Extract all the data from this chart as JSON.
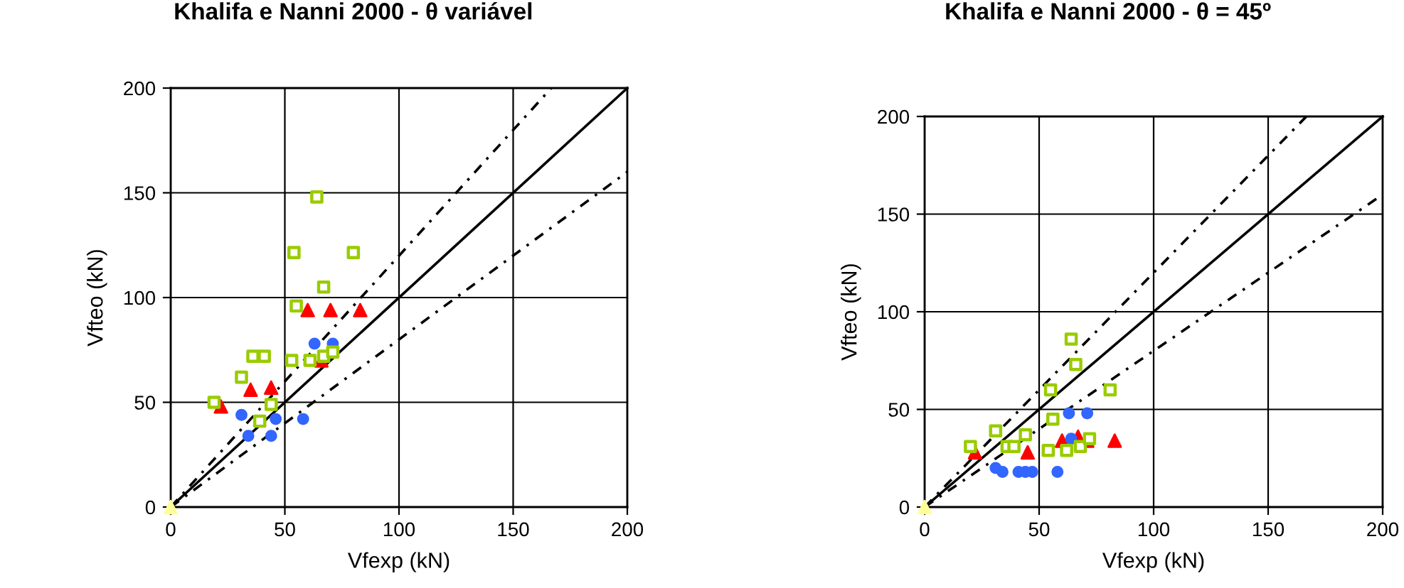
{
  "chart_data": [
    {
      "type": "scatter",
      "title": "Khalifa e Nanni 2000 - θ variável",
      "xlabel": "Vfexp (kN)",
      "ylabel": "Vfteo (kN)",
      "xlim": [
        0,
        200
      ],
      "ylim": [
        0,
        200
      ],
      "xticks": [
        0,
        50,
        100,
        150,
        200
      ],
      "yticks": [
        0,
        50,
        100,
        150,
        200
      ],
      "grid": true,
      "legend": false,
      "series": [
        {
          "type": "line",
          "color": "#000000",
          "line_style": "solid",
          "marker": "none",
          "x": [
            0,
            200
          ],
          "values": [
            0,
            200
          ]
        },
        {
          "type": "line",
          "color": "#000000",
          "line_style": "dashed",
          "marker": "none",
          "x": [
            0,
            166.7
          ],
          "values": [
            0,
            200
          ]
        },
        {
          "type": "line",
          "color": "#000000",
          "line_style": "dashed",
          "marker": "none",
          "x": [
            0,
            200
          ],
          "values": [
            0,
            160
          ]
        },
        {
          "color": "#99cc00",
          "marker": "square",
          "x": [
            64,
            54,
            80,
            67,
            55,
            36,
            41,
            31,
            53,
            61,
            67,
            71,
            19,
            44,
            39
          ],
          "values": [
            148,
            121.5,
            121.5,
            105,
            96,
            72,
            72,
            62,
            70,
            70,
            72,
            74,
            50,
            49,
            41
          ]
        },
        {
          "color": "#ff0000",
          "marker": "triangle",
          "x": [
            60,
            70,
            83,
            35,
            44,
            22,
            66
          ],
          "values": [
            94,
            94,
            94,
            56,
            57,
            48,
            70
          ]
        },
        {
          "color": "#3366ff",
          "marker": "circle",
          "x": [
            63,
            71,
            31,
            46,
            58,
            34,
            44
          ],
          "values": [
            78,
            78,
            44,
            42,
            42,
            34,
            34
          ]
        },
        {
          "color": "#ffff99",
          "marker": "triangle",
          "x": [
            0
          ],
          "values": [
            0
          ]
        }
      ]
    },
    {
      "type": "scatter",
      "title": "Khalifa e Nanni 2000 - θ = 45º",
      "xlabel": "Vfexp (kN)",
      "ylabel": "Vfteo (kN)",
      "xlim": [
        0,
        200
      ],
      "ylim": [
        0,
        200
      ],
      "xticks": [
        0,
        50,
        100,
        150,
        200
      ],
      "yticks": [
        0,
        50,
        100,
        150,
        200
      ],
      "grid": true,
      "legend": false,
      "series": [
        {
          "type": "line",
          "color": "#000000",
          "line_style": "solid",
          "marker": "none",
          "x": [
            0,
            200
          ],
          "values": [
            0,
            200
          ]
        },
        {
          "type": "line",
          "color": "#000000",
          "line_style": "dashed",
          "marker": "none",
          "x": [
            0,
            166.7
          ],
          "values": [
            0,
            200
          ]
        },
        {
          "type": "line",
          "color": "#000000",
          "line_style": "dashed",
          "marker": "none",
          "x": [
            0,
            200
          ],
          "values": [
            0,
            160
          ]
        },
        {
          "color": "#99cc00",
          "marker": "square",
          "x": [
            64,
            66,
            55,
            81,
            56,
            31,
            44,
            20,
            36,
            39,
            54,
            62,
            68,
            72
          ],
          "values": [
            86,
            73,
            60,
            60,
            45,
            39,
            37,
            31,
            31,
            31,
            29,
            29,
            31,
            35
          ]
        },
        {
          "color": "#ff0000",
          "marker": "triangle",
          "x": [
            22,
            45,
            60,
            67,
            71,
            83
          ],
          "values": [
            28,
            28,
            34,
            36,
            34,
            34
          ]
        },
        {
          "color": "#3366ff",
          "marker": "circle",
          "x": [
            63,
            71,
            64,
            31,
            34,
            41,
            44,
            47,
            58
          ],
          "values": [
            48,
            48,
            35,
            20,
            18,
            18,
            18,
            18,
            18
          ]
        },
        {
          "color": "#ffff99",
          "marker": "triangle",
          "x": [
            0
          ],
          "values": [
            0
          ]
        }
      ]
    }
  ]
}
